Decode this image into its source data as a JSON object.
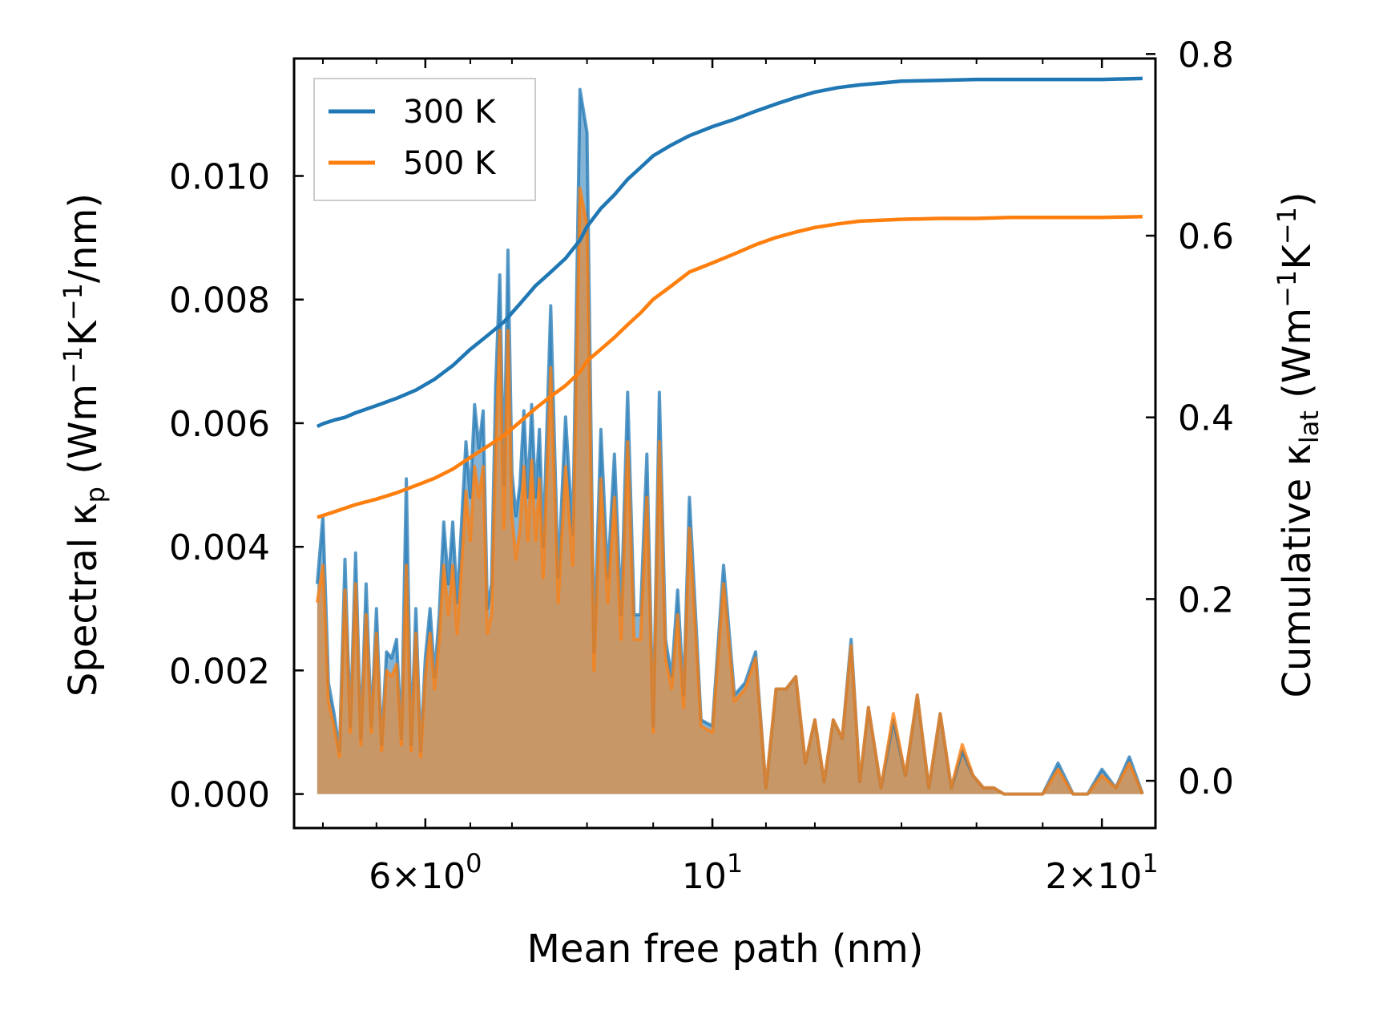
{
  "chart_data": {
    "type": "line",
    "xscale": "log",
    "xlabel": "Mean free path (nm)",
    "ylabel_left": {
      "main": "Spectral κ",
      "sub": "p",
      "units": "(Wm",
      "sup1": "−1",
      "k": "K",
      "sup2": "−1",
      "tail": "/nm)"
    },
    "ylabel_right": {
      "main": "Cumulative κ",
      "sub": "lat",
      "units": "(Wm",
      "sup1": "−1",
      "k": "K",
      "sup2": "−1",
      "tail": ")"
    },
    "xlim": [
      4.75,
      22.0
    ],
    "ylim_left": [
      -0.00055,
      0.0119
    ],
    "ylim_right": [
      -0.052,
      0.795
    ],
    "x_major_ticks": [
      {
        "value": 6,
        "mantissa": "6",
        "times": "×",
        "base": "10",
        "exp": "0"
      },
      {
        "value": 10,
        "mantissa": "",
        "times": "",
        "base": "10",
        "exp": "1"
      },
      {
        "value": 20,
        "mantissa": "2",
        "times": "×",
        "base": "10",
        "exp": "1"
      }
    ],
    "x_minor_ticks": [
      5,
      5.5,
      6.5,
      7,
      8,
      9,
      11,
      12,
      14,
      16,
      18
    ],
    "y_left_ticks": [
      "0.000",
      "0.002",
      "0.004",
      "0.006",
      "0.008",
      "0.010"
    ],
    "y_left_tick_values": [
      0,
      0.002,
      0.004,
      0.006,
      0.008,
      0.01
    ],
    "y_right_ticks": [
      "0.0",
      "0.2",
      "0.4",
      "0.6",
      "0.8"
    ],
    "y_right_tick_values": [
      0,
      0.2,
      0.4,
      0.6,
      0.8
    ],
    "legend": {
      "position": "upper-left",
      "entries": [
        "300 K",
        "500 K"
      ]
    },
    "colors": {
      "300 K": "#1f77b4",
      "500 K": "#ff7f0e",
      "fill_300": "#1f77b4",
      "fill_500": "#ff7f0e"
    },
    "spectral": {
      "x": [
        4.95,
        5.0,
        5.05,
        5.1,
        5.15,
        5.2,
        5.25,
        5.3,
        5.35,
        5.4,
        5.45,
        5.5,
        5.55,
        5.6,
        5.65,
        5.7,
        5.75,
        5.8,
        5.85,
        5.9,
        5.95,
        6.0,
        6.05,
        6.1,
        6.15,
        6.2,
        6.25,
        6.3,
        6.35,
        6.4,
        6.45,
        6.5,
        6.55,
        6.6,
        6.65,
        6.7,
        6.75,
        6.8,
        6.85,
        6.9,
        6.95,
        7.0,
        7.05,
        7.1,
        7.15,
        7.2,
        7.25,
        7.3,
        7.35,
        7.4,
        7.5,
        7.6,
        7.7,
        7.8,
        7.9,
        8.0,
        8.1,
        8.2,
        8.3,
        8.4,
        8.5,
        8.6,
        8.7,
        8.8,
        8.9,
        9.0,
        9.1,
        9.2,
        9.3,
        9.4,
        9.5,
        9.6,
        9.8,
        10.0,
        10.2,
        10.4,
        10.6,
        10.8,
        11.0,
        11.2,
        11.4,
        11.6,
        11.8,
        12.0,
        12.2,
        12.4,
        12.6,
        12.8,
        13.0,
        13.2,
        13.5,
        13.8,
        14.1,
        14.4,
        14.7,
        15.0,
        15.3,
        15.6,
        15.9,
        16.2,
        16.5,
        16.8,
        17.1,
        17.4,
        17.7,
        18.0,
        18.5,
        19.0,
        19.5,
        20.0,
        20.5,
        21.0,
        21.5
      ],
      "k300": [
        0.0034,
        0.0045,
        0.0018,
        0.0013,
        0.0007,
        0.0038,
        0.0011,
        0.0039,
        0.0009,
        0.0034,
        0.0011,
        0.003,
        0.0008,
        0.0023,
        0.0022,
        0.0025,
        0.0009,
        0.0051,
        0.0008,
        0.003,
        0.0007,
        0.0022,
        0.003,
        0.0019,
        0.0029,
        0.0044,
        0.0034,
        0.0044,
        0.0031,
        0.0044,
        0.0057,
        0.0048,
        0.0063,
        0.0056,
        0.0062,
        0.003,
        0.0034,
        0.0066,
        0.0084,
        0.005,
        0.0088,
        0.0052,
        0.0045,
        0.005,
        0.0062,
        0.0048,
        0.0063,
        0.0048,
        0.0059,
        0.004,
        0.0079,
        0.0035,
        0.0061,
        0.0042,
        0.0114,
        0.0107,
        0.0023,
        0.0059,
        0.0035,
        0.0055,
        0.0029,
        0.0065,
        0.0029,
        0.0029,
        0.0055,
        0.0011,
        0.0065,
        0.0025,
        0.0019,
        0.0033,
        0.0016,
        0.0048,
        0.0012,
        0.0011,
        0.0037,
        0.0016,
        0.0018,
        0.0023,
        0.0001,
        0.0017,
        0.0017,
        0.0019,
        0.0005,
        0.0012,
        0.0002,
        0.0012,
        0.0009,
        0.0025,
        0.0002,
        0.0014,
        0.0001,
        0.0012,
        0.0003,
        0.0016,
        0.0001,
        0.0013,
        0.0001,
        0.0007,
        0.0003,
        0.0001,
        0.0001,
        0.0,
        0.0,
        0.0,
        0.0,
        0.0,
        0.0005,
        0.0,
        0.0,
        0.0004,
        0.0001,
        0.0006,
        0.0
      ],
      "k500": [
        0.0031,
        0.0037,
        0.0015,
        0.0011,
        0.0006,
        0.0033,
        0.001,
        0.0034,
        0.0008,
        0.0029,
        0.001,
        0.0026,
        0.0007,
        0.002,
        0.0019,
        0.0021,
        0.0008,
        0.0037,
        0.0007,
        0.0026,
        0.0006,
        0.0019,
        0.0026,
        0.0017,
        0.0025,
        0.0037,
        0.0029,
        0.0037,
        0.0026,
        0.0037,
        0.0049,
        0.0041,
        0.0053,
        0.0048,
        0.0053,
        0.0026,
        0.0029,
        0.0056,
        0.0075,
        0.0043,
        0.0075,
        0.0045,
        0.0038,
        0.0043,
        0.0053,
        0.0041,
        0.0054,
        0.0041,
        0.0051,
        0.0035,
        0.0069,
        0.0031,
        0.0053,
        0.0037,
        0.0098,
        0.0092,
        0.002,
        0.0051,
        0.0031,
        0.0048,
        0.0025,
        0.0057,
        0.0025,
        0.0025,
        0.0048,
        0.001,
        0.0057,
        0.0022,
        0.0017,
        0.0029,
        0.0014,
        0.0043,
        0.0011,
        0.001,
        0.0034,
        0.0015,
        0.0017,
        0.0022,
        0.0001,
        0.0017,
        0.0017,
        0.0019,
        0.0005,
        0.0012,
        0.0002,
        0.0012,
        0.0009,
        0.0024,
        0.0002,
        0.0014,
        0.0001,
        0.0013,
        0.0003,
        0.0016,
        0.0001,
        0.0013,
        0.0001,
        0.0008,
        0.0003,
        0.0001,
        0.0001,
        0.0,
        0.0,
        0.0,
        0.0,
        0.0,
        0.0004,
        0.0,
        0.0,
        0.0003,
        0.0001,
        0.0005,
        0.0
      ]
    },
    "cumulative": {
      "x": [
        4.95,
        5.0,
        5.1,
        5.2,
        5.3,
        5.5,
        5.7,
        5.9,
        6.1,
        6.3,
        6.5,
        6.7,
        6.9,
        7.1,
        7.3,
        7.5,
        7.7,
        7.9,
        8.0,
        8.2,
        8.4,
        8.6,
        8.8,
        9.0,
        9.3,
        9.6,
        10.0,
        10.4,
        10.8,
        11.2,
        11.6,
        12.0,
        12.5,
        13.0,
        13.5,
        14.0,
        15.0,
        16.0,
        17.0,
        18.0,
        19.0,
        20.0,
        21.5
      ],
      "k300": [
        0.39,
        0.393,
        0.397,
        0.4,
        0.405,
        0.413,
        0.421,
        0.43,
        0.442,
        0.457,
        0.475,
        0.49,
        0.505,
        0.525,
        0.545,
        0.56,
        0.575,
        0.595,
        0.61,
        0.63,
        0.645,
        0.662,
        0.675,
        0.688,
        0.7,
        0.71,
        0.72,
        0.728,
        0.737,
        0.745,
        0.752,
        0.758,
        0.763,
        0.766,
        0.768,
        0.77,
        0.771,
        0.772,
        0.772,
        0.772,
        0.772,
        0.772,
        0.773
      ],
      "k500": [
        0.29,
        0.292,
        0.296,
        0.3,
        0.304,
        0.31,
        0.317,
        0.325,
        0.333,
        0.343,
        0.356,
        0.368,
        0.38,
        0.395,
        0.41,
        0.423,
        0.435,
        0.45,
        0.462,
        0.475,
        0.488,
        0.502,
        0.515,
        0.53,
        0.545,
        0.56,
        0.57,
        0.58,
        0.59,
        0.598,
        0.604,
        0.609,
        0.613,
        0.616,
        0.617,
        0.618,
        0.619,
        0.619,
        0.62,
        0.62,
        0.62,
        0.62,
        0.621
      ]
    }
  }
}
